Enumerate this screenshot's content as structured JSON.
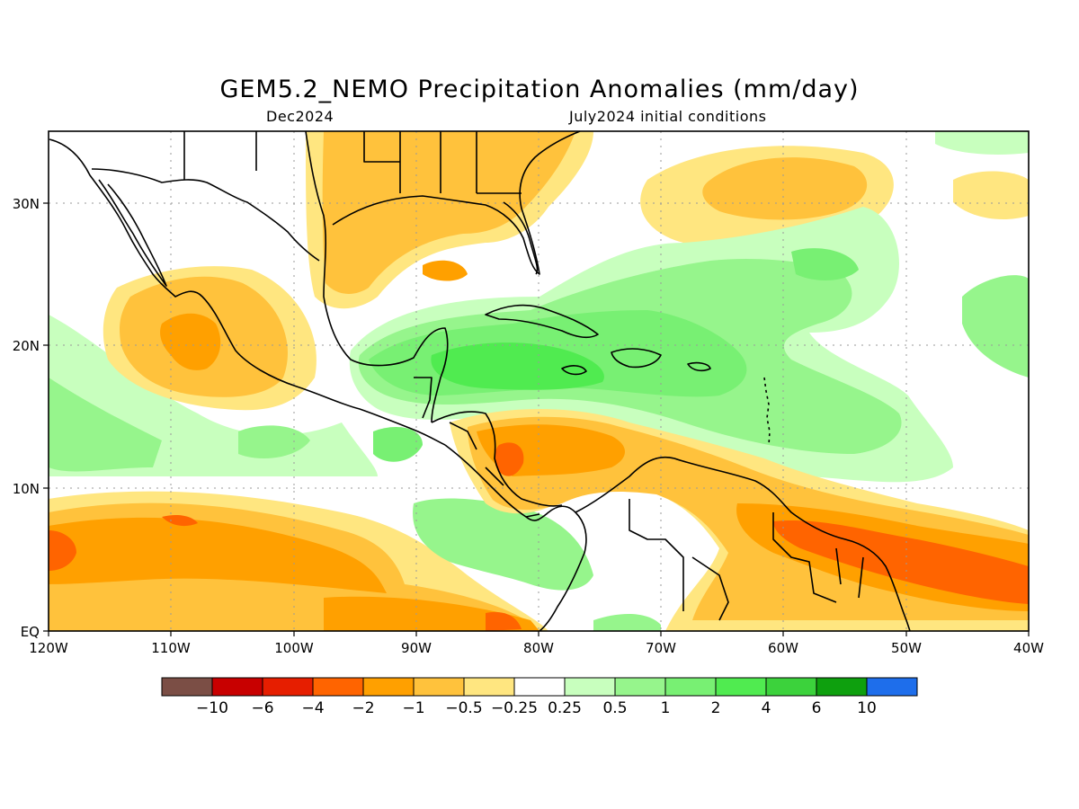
{
  "title": "GEM5.2_NEMO Precipitation Anomalies (mm/day)",
  "subtitle_left": "Dec2024",
  "subtitle_right": "July2024 initial conditions",
  "map": {
    "region": "Caribbean / Central America / Gulf of Mexico",
    "lon_range": [
      -120,
      -40
    ],
    "lat_range": [
      0,
      35
    ],
    "x_ticks": [
      "120W",
      "110W",
      "100W",
      "90W",
      "80W",
      "70W",
      "60W",
      "50W",
      "40W"
    ],
    "y_ticks": [
      "EQ",
      "10N",
      "20N",
      "30N"
    ],
    "grid": "dotted"
  },
  "colorbar": {
    "labels": [
      "−10",
      "−6",
      "−4",
      "−2",
      "−1",
      "−0.5",
      "−0.25",
      "0.25",
      "0.5",
      "1",
      "2",
      "4",
      "6",
      "10"
    ],
    "colors": [
      "#7b4e45",
      "#c80000",
      "#e61e00",
      "#ff6400",
      "#ffa000",
      "#ffc23c",
      "#ffe680",
      "#ffffff",
      "#c8ffbe",
      "#96f58c",
      "#78f073",
      "#50eb50",
      "#3cd23c",
      "#0ea00e",
      "#1e6eeb"
    ]
  },
  "palette": {
    "brown": "#7b4e45",
    "dark_red": "#c80000",
    "red": "#e61e00",
    "red_orange": "#ff6400",
    "orange": "#ffa000",
    "light_orange": "#ffc23c",
    "pale_yellow": "#ffe680",
    "white": "#ffffff",
    "pale_green": "#c8ffbe",
    "light_green": "#96f58c",
    "green": "#78f073",
    "bright_green": "#50eb50",
    "mid_green": "#3cd23c",
    "dark_green": "#0ea00e",
    "blue": "#1e6eeb"
  }
}
